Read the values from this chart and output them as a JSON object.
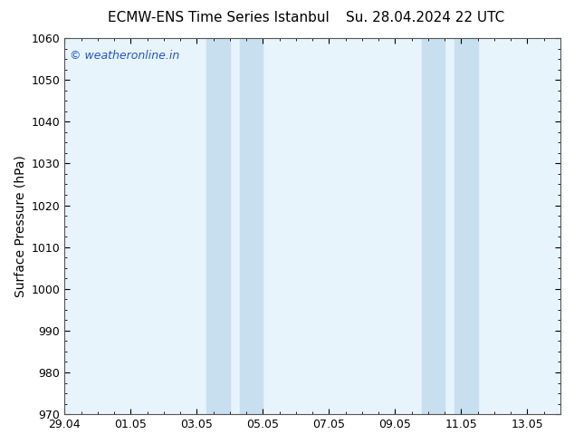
{
  "title_left": "ECMW-ENS Time Series Istanbul",
  "title_right": "Su. 28.04.2024 22 UTC",
  "ylabel": "Surface Pressure (hPa)",
  "ylim": [
    970,
    1060
  ],
  "yticks": [
    970,
    980,
    990,
    1000,
    1010,
    1020,
    1030,
    1040,
    1050,
    1060
  ],
  "xtick_labels": [
    "29.04",
    "01.05",
    "03.05",
    "05.05",
    "07.05",
    "09.05",
    "11.05",
    "13.05"
  ],
  "xtick_positions": [
    0,
    2,
    4,
    6,
    8,
    10,
    12,
    14
  ],
  "xlim": [
    0,
    15
  ],
  "shaded_bands": [
    {
      "x_start": 4.3,
      "x_end": 5.0
    },
    {
      "x_start": 5.3,
      "x_end": 6.0
    },
    {
      "x_start": 10.8,
      "x_end": 11.5
    },
    {
      "x_start": 11.8,
      "x_end": 12.5
    }
  ],
  "bg_color": "#ffffff",
  "plot_bg_color": "#e8f4fc",
  "shading_color": "#c8dff0",
  "border_color": "#555555",
  "watermark_text": "© weatheronline.in",
  "watermark_color": "#2255cc",
  "title_fontsize": 11,
  "axis_label_fontsize": 10,
  "tick_fontsize": 9,
  "watermark_fontsize": 9
}
